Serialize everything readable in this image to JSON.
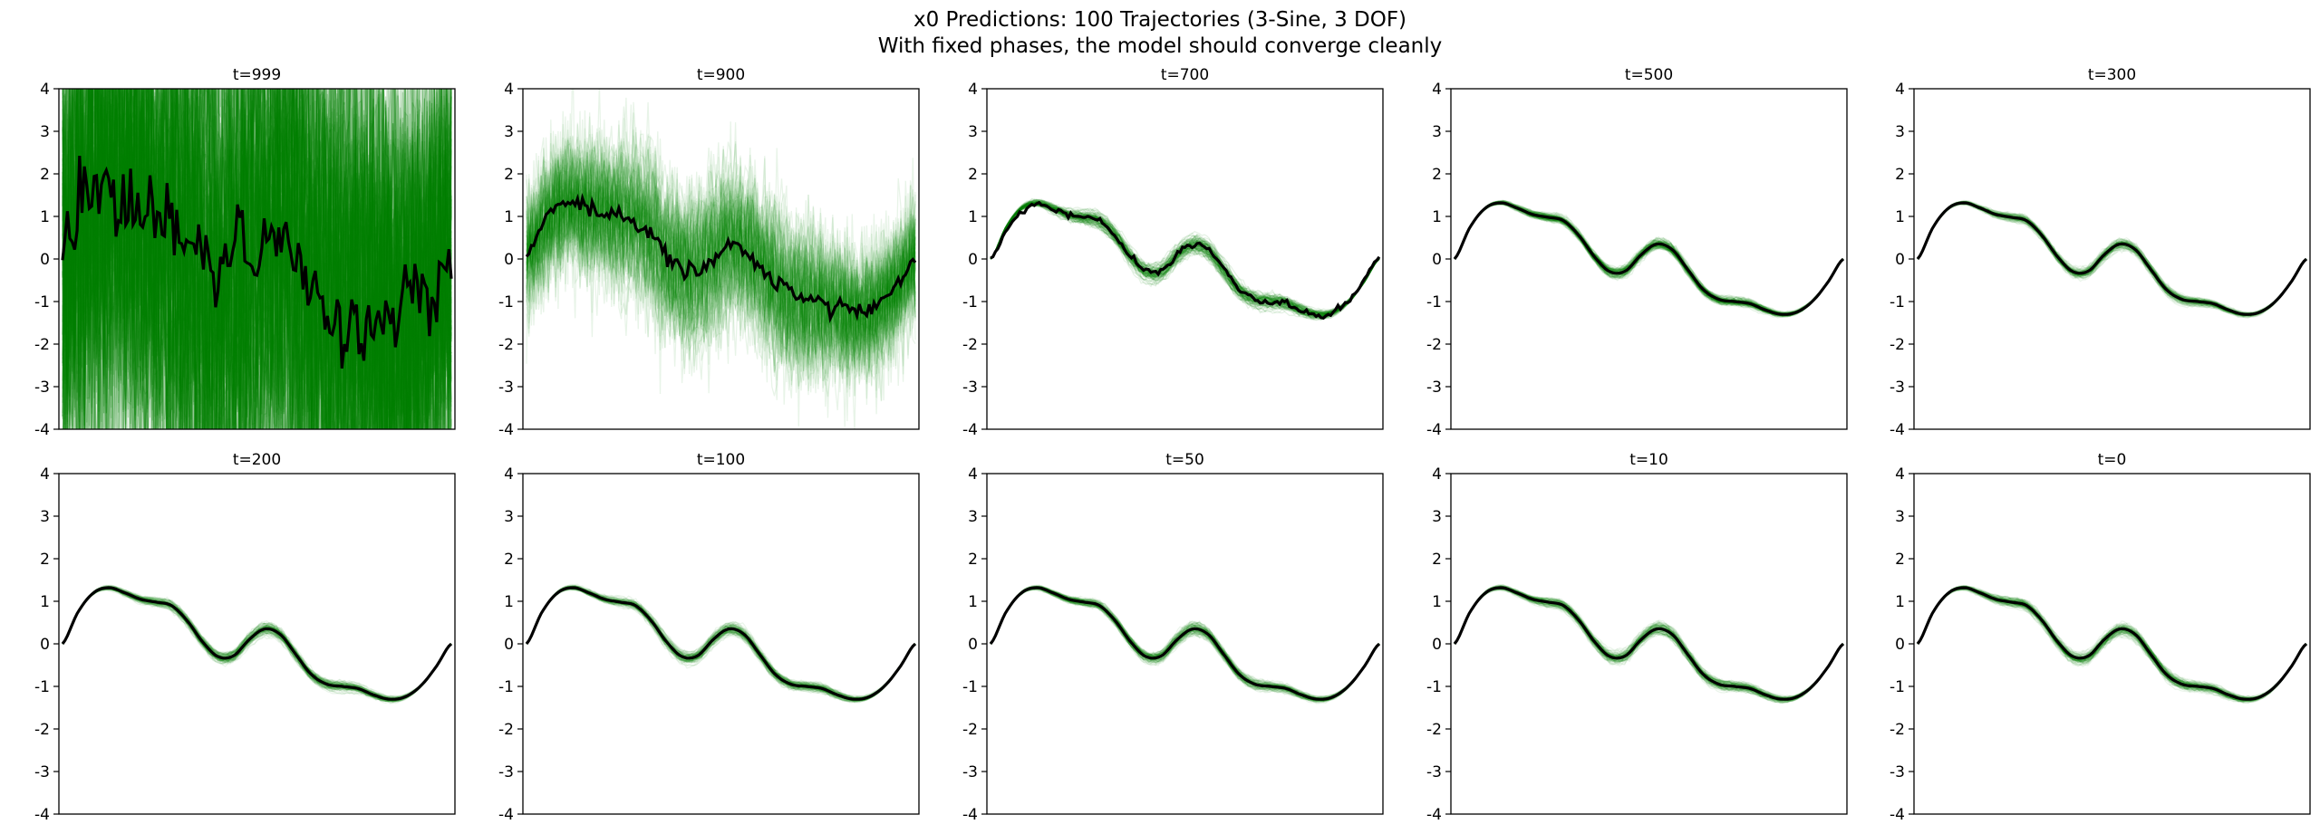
{
  "figure": {
    "title_line1": "x0 Predictions: 100 Trajectories (3-Sine, 3 DOF)",
    "title_line2": "With fixed phases, the model should converge cleanly"
  },
  "chart_data": {
    "type": "line",
    "n_trajectories": 100,
    "ylim": [
      -4,
      4
    ],
    "yticks": [
      -4,
      -3,
      -2,
      -1,
      0,
      1,
      2,
      3,
      4
    ],
    "xticks_visible": false,
    "grid": false,
    "colors": {
      "samples": "#008000",
      "mean": "#000000"
    },
    "mean_curve": {
      "x": [
        0.0,
        0.04,
        0.08,
        0.12,
        0.16,
        0.2,
        0.24,
        0.28,
        0.32,
        0.36,
        0.4,
        0.44,
        0.48,
        0.52,
        0.56,
        0.6,
        0.64,
        0.68,
        0.72,
        0.76,
        0.8,
        0.84,
        0.88,
        0.92,
        0.96,
        1.0
      ],
      "y": [
        0.0,
        0.75,
        1.2,
        1.32,
        1.2,
        1.05,
        0.98,
        0.9,
        0.55,
        0.05,
        -0.3,
        -0.28,
        0.1,
        0.35,
        0.22,
        -0.25,
        -0.72,
        -0.95,
        -1.0,
        -1.05,
        -1.2,
        -1.3,
        -1.25,
        -1.0,
        -0.55,
        0.0
      ]
    },
    "panels": [
      {
        "title": "t=999",
        "sample_spread": 6.0,
        "mean_noise": 0.65,
        "sample_opacity": 0.22
      },
      {
        "title": "t=900",
        "sample_spread": 1.6,
        "mean_noise": 0.15,
        "sample_opacity": 0.09
      },
      {
        "title": "t=700",
        "sample_spread": 0.28,
        "mean_noise": 0.05,
        "sample_opacity": 0.1
      },
      {
        "title": "t=500",
        "sample_spread": 0.16,
        "mean_noise": 0.0,
        "sample_opacity": 0.1
      },
      {
        "title": "t=300",
        "sample_spread": 0.16,
        "mean_noise": 0.0,
        "sample_opacity": 0.08
      },
      {
        "title": "t=200",
        "sample_spread": 0.18,
        "mean_noise": 0.0,
        "sample_opacity": 0.08
      },
      {
        "title": "t=100",
        "sample_spread": 0.18,
        "mean_noise": 0.0,
        "sample_opacity": 0.08
      },
      {
        "title": "t=50",
        "sample_spread": 0.18,
        "mean_noise": 0.0,
        "sample_opacity": 0.08
      },
      {
        "title": "t=10",
        "sample_spread": 0.18,
        "mean_noise": 0.0,
        "sample_opacity": 0.08
      },
      {
        "title": "t=0",
        "sample_spread": 0.18,
        "mean_noise": 0.0,
        "sample_opacity": 0.08
      }
    ]
  }
}
